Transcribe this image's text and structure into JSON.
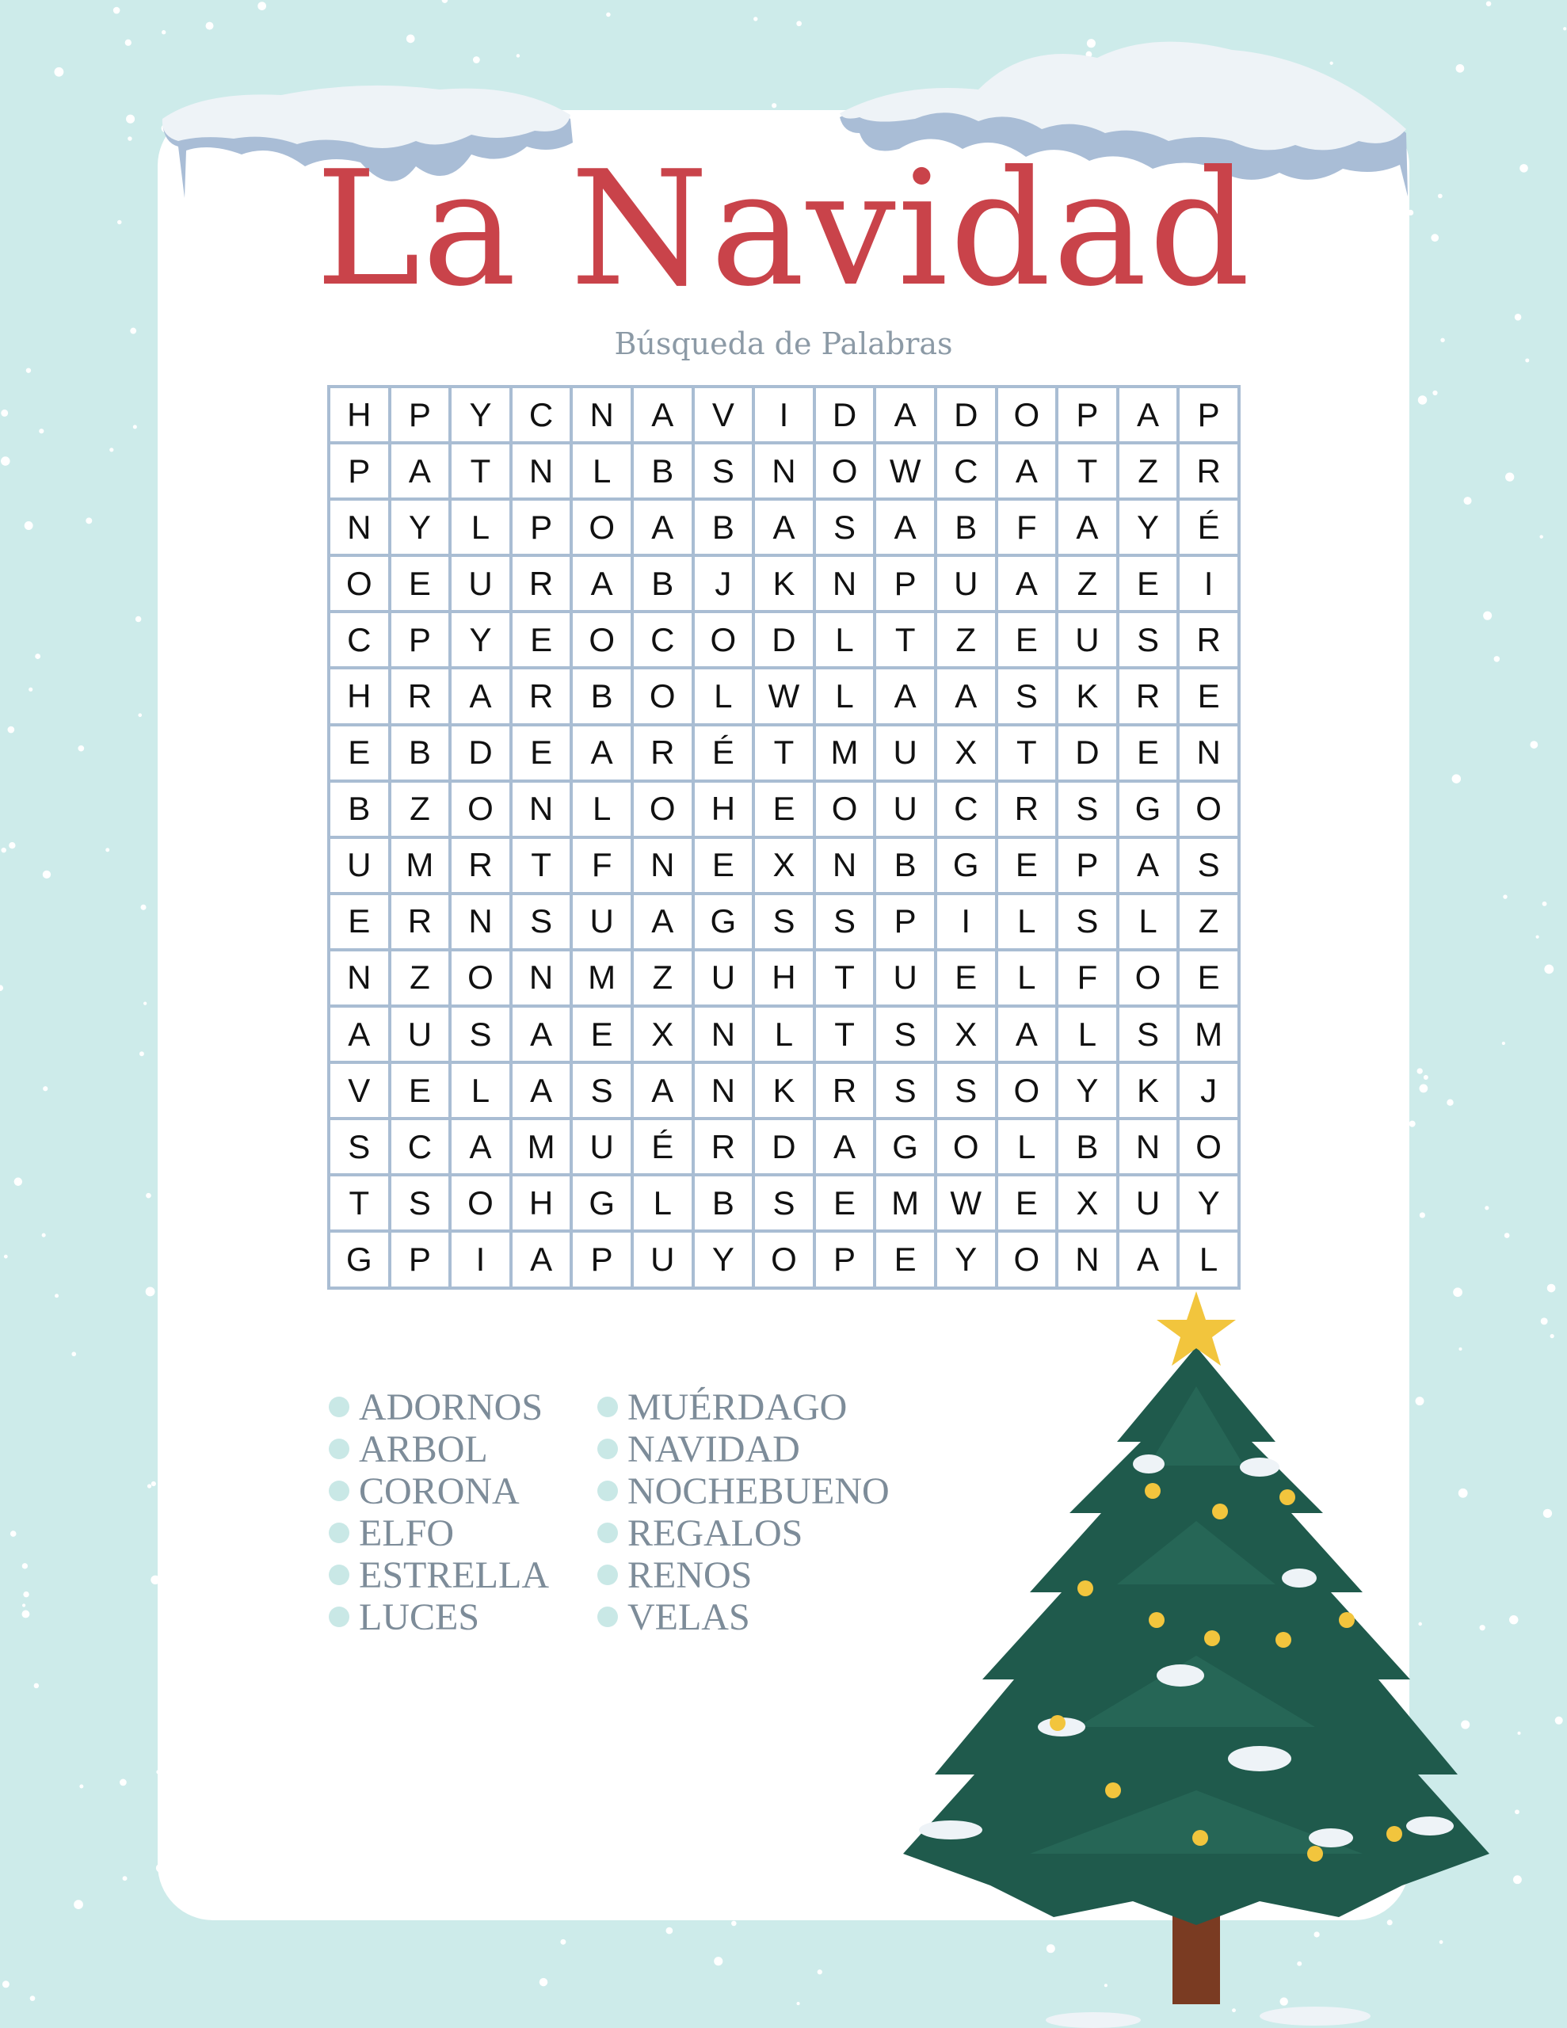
{
  "title": "La Navidad",
  "subtitle": "Búsqueda de Palabras",
  "colors": {
    "background": "#cdebea",
    "title": "#c9434a",
    "subtitle": "#8c9aa6",
    "grid_border": "#a9bdd3",
    "word_text": "#7d8c99",
    "bullet": "#c9e8e6",
    "tree": "#1f5a4c",
    "star": "#f2c53d"
  },
  "grid": [
    [
      "H",
      "P",
      "Y",
      "C",
      "N",
      "A",
      "V",
      "I",
      "D",
      "A",
      "D",
      "O",
      "P",
      "A",
      "P"
    ],
    [
      "P",
      "A",
      "T",
      "N",
      "L",
      "B",
      "S",
      "N",
      "O",
      "W",
      "C",
      "A",
      "T",
      "Z",
      "R"
    ],
    [
      "N",
      "Y",
      "L",
      "P",
      "O",
      "A",
      "B",
      "A",
      "S",
      "A",
      "B",
      "F",
      "A",
      "Y",
      "É"
    ],
    [
      "O",
      "E",
      "U",
      "R",
      "A",
      "B",
      "J",
      "K",
      "N",
      "P",
      "U",
      "A",
      "Z",
      "E",
      "I"
    ],
    [
      "C",
      "P",
      "Y",
      "E",
      "O",
      "C",
      "O",
      "D",
      "L",
      "T",
      "Z",
      "E",
      "U",
      "S",
      "R"
    ],
    [
      "H",
      "R",
      "A",
      "R",
      "B",
      "O",
      "L",
      "W",
      "L",
      "A",
      "A",
      "S",
      "K",
      "R",
      "E"
    ],
    [
      "E",
      "B",
      "D",
      "E",
      "A",
      "R",
      "É",
      "T",
      "M",
      "U",
      "X",
      "T",
      "D",
      "E",
      "N"
    ],
    [
      "B",
      "Z",
      "O",
      "N",
      "L",
      "O",
      "H",
      "E",
      "O",
      "U",
      "C",
      "R",
      "S",
      "G",
      "O"
    ],
    [
      "U",
      "M",
      "R",
      "T",
      "F",
      "N",
      "E",
      "X",
      "N",
      "B",
      "G",
      "E",
      "P",
      "A",
      "S"
    ],
    [
      "E",
      "R",
      "N",
      "S",
      "U",
      "A",
      "G",
      "S",
      "S",
      "P",
      "I",
      "L",
      "S",
      "L",
      "Z"
    ],
    [
      "N",
      "Z",
      "O",
      "N",
      "M",
      "Z",
      "U",
      "H",
      "T",
      "U",
      "E",
      "L",
      "F",
      "O",
      "E"
    ],
    [
      "A",
      "U",
      "S",
      "A",
      "E",
      "X",
      "N",
      "L",
      "T",
      "S",
      "X",
      "A",
      "L",
      "S",
      "M"
    ],
    [
      "V",
      "E",
      "L",
      "A",
      "S",
      "A",
      "N",
      "K",
      "R",
      "S",
      "S",
      "O",
      "Y",
      "K",
      "J"
    ],
    [
      "S",
      "C",
      "A",
      "M",
      "U",
      "É",
      "R",
      "D",
      "A",
      "G",
      "O",
      "L",
      "B",
      "N",
      "O"
    ],
    [
      "T",
      "S",
      "O",
      "H",
      "G",
      "L",
      "B",
      "S",
      "E",
      "M",
      "W",
      "E",
      "X",
      "U",
      "Y"
    ],
    [
      "G",
      "P",
      "I",
      "A",
      "P",
      "U",
      "Y",
      "O",
      "P",
      "E",
      "Y",
      "O",
      "N",
      "A",
      "L"
    ]
  ],
  "word_list": {
    "column1": [
      "ADORNOS",
      "ARBOL",
      "CORONA",
      "ELFO",
      "ESTRELLA",
      "LUCES"
    ],
    "column2": [
      "MUÉRDAGO",
      "NAVIDAD",
      "NOCHEBUENO",
      "REGALOS",
      "RENOS",
      "VELAS"
    ]
  },
  "decorations": [
    "snow-icicles",
    "christmas-tree-illustration",
    "star-icon"
  ]
}
